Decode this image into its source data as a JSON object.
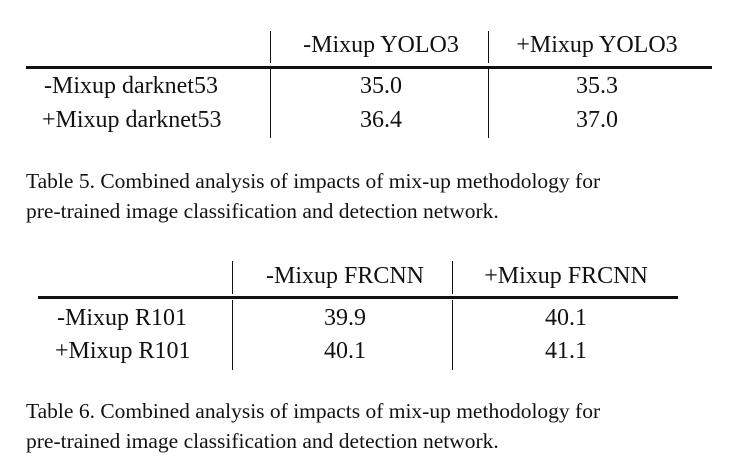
{
  "table5": {
    "col_headers": [
      "-Mixup YOLO3",
      "+Mixup YOLO3"
    ],
    "rows": [
      {
        "label": "-Mixup darknet53",
        "values": [
          "35.0",
          "35.3"
        ]
      },
      {
        "label": "+Mixup darknet53",
        "values": [
          "36.4",
          "37.0"
        ]
      }
    ],
    "caption_line1": "Table 5. Combined analysis of impacts of mix-up methodology for",
    "caption_line2": "pre-trained image classification and detection network."
  },
  "table6": {
    "col_headers": [
      "-Mixup FRCNN",
      "+Mixup FRCNN"
    ],
    "rows": [
      {
        "label": "-Mixup R101",
        "values": [
          "39.9",
          "40.1"
        ]
      },
      {
        "label": "+Mixup R101",
        "values": [
          "40.1",
          "41.1"
        ]
      }
    ],
    "caption_line1": "Table 6. Combined analysis of impacts of mix-up methodology for",
    "caption_line2": "pre-trained image classification and detection network."
  }
}
